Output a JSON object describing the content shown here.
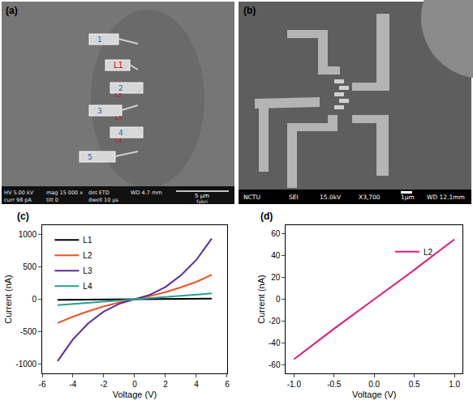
{
  "images": [
    {
      "panel": "(a)",
      "pads": [
        "1",
        "L1",
        "2",
        "3",
        "4",
        "5"
      ],
      "gap_labels": [
        "L2",
        "L3",
        "L4"
      ],
      "info": [
        "HV 5.00 kV",
        "mag 15 000 x",
        "det ETD",
        "WD 4.7 mm",
        "curr 98 pA",
        "tilt 0",
        "dwell 10 µs"
      ],
      "scale": "5 µm",
      "tag": "fabri"
    },
    {
      "panel": "(b)",
      "info": [
        "NCTU",
        "SEI",
        "15.0kV",
        "X3,700",
        "1µm",
        "WD 12.1mm"
      ]
    }
  ],
  "chart_data": [
    {
      "type": "line",
      "title": "(c)",
      "x_label": "Voltage (V)",
      "y_label": "Current (nA)",
      "xlim": [
        -6,
        6
      ],
      "xticks": [
        -6,
        -4,
        -2,
        0,
        2,
        4,
        6
      ],
      "ylim": [
        -1150,
        1150
      ],
      "yticks": [
        -1000,
        -500,
        0,
        500,
        1000
      ],
      "grid": false,
      "legend": "top left",
      "x": [
        -5,
        -4,
        -3,
        -2,
        -1,
        0,
        1,
        2,
        3,
        4,
        5
      ],
      "series": [
        {
          "name": "L1",
          "color": "#000000",
          "values": [
            -10,
            -8,
            -6,
            -4,
            -2,
            0,
            2,
            4,
            6,
            8,
            10
          ]
        },
        {
          "name": "L2",
          "color": "#e8562a",
          "values": [
            -370,
            -270,
            -185,
            -110,
            -50,
            0,
            50,
            110,
            185,
            270,
            380
          ]
        },
        {
          "name": "L3",
          "color": "#5b2c9f",
          "values": [
            -960,
            -620,
            -370,
            -190,
            -70,
            0,
            70,
            190,
            370,
            610,
            940
          ]
        },
        {
          "name": "L4",
          "color": "#2a9d8f",
          "values": [
            -90,
            -72,
            -54,
            -36,
            -18,
            0,
            18,
            36,
            54,
            72,
            90
          ]
        }
      ]
    },
    {
      "type": "line",
      "title": "(d)",
      "x_label": "Voltage (V)",
      "y_label": "Current (nA)",
      "xlim": [
        -1.1,
        1.1
      ],
      "xticks": [
        {
          "value": -1,
          "label": "-1.0"
        },
        {
          "value": -0.5,
          "label": "-0.5"
        },
        {
          "value": 0,
          "label": "0.0"
        },
        {
          "value": 0.5,
          "label": "0.5"
        },
        {
          "value": 1,
          "label": "1.0"
        }
      ],
      "ylim": [
        -68,
        68
      ],
      "yticks": [
        -60,
        -40,
        -20,
        0,
        20,
        40,
        60
      ],
      "grid": false,
      "legend": "top left",
      "x": [
        -1,
        -0.5,
        0,
        0.5,
        1
      ],
      "series": [
        {
          "name": "L2",
          "color": "#e0197a",
          "values": [
            -55,
            -27,
            0,
            27,
            55
          ]
        }
      ]
    }
  ]
}
